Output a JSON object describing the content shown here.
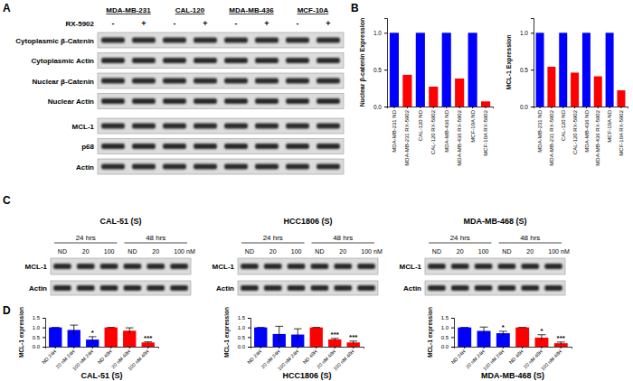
{
  "panel_labels": [
    "A",
    "B",
    "C",
    "D"
  ],
  "blot_a": {
    "treatment_label": "RX-5902",
    "groups": [
      {
        "name": "MDA-MB-231",
        "lanes": [
          "-",
          "+"
        ]
      },
      {
        "name": "CAL-120",
        "lanes": [
          "-",
          "+"
        ]
      },
      {
        "name": "MDA-MB-436",
        "lanes": [
          "-",
          "+"
        ]
      },
      {
        "name": "MCF-10A",
        "lanes": [
          "-",
          "+"
        ]
      }
    ],
    "row_groups": [
      [
        "Cytoplasmic β-Catenin",
        "Cytoplasmic Actin",
        "Nuclear β-Catenin",
        "Nuclear Actin"
      ],
      [
        "MCL-1",
        "p68",
        "Actin"
      ]
    ]
  },
  "blots_c": [
    {
      "title": "CAL-51 (S)",
      "times": [
        "24 hrs",
        "48 hrs"
      ],
      "lanes": [
        "ND",
        "20",
        "100",
        "ND",
        "20",
        "100"
      ],
      "unit": "nM",
      "rows": [
        "MCL-1",
        "Actin"
      ]
    },
    {
      "title": "HCC1806 (S)",
      "times": [
        "24 hrs",
        "48 hrs"
      ],
      "lanes": [
        "ND",
        "20",
        "100",
        "ND",
        "20",
        "100"
      ],
      "unit": "nM",
      "rows": [
        "MCL-1",
        "Actin"
      ]
    },
    {
      "title": "MDA-MB-468 (S)",
      "times": [
        "24 hrs",
        "48 hrs"
      ],
      "lanes": [
        "ND",
        "20",
        "100",
        "ND",
        "20",
        "100"
      ],
      "unit": "nM",
      "rows": [
        "MCL-1",
        "Actin"
      ]
    }
  ],
  "chart_data": [
    {
      "type": "bar",
      "ylabel": "Nuclear β-catenin Expression",
      "categories": [
        "MDA-MB-231 ND",
        "MDA-MB-231 RX-5902",
        "CAL-120 ND",
        "CAL-120 RX-5902",
        "MDA-MB-436 ND",
        "MDA-MB-436 RX-5902",
        "MCF-10A ND",
        "MCF-10A RX-5902"
      ],
      "values": [
        1.0,
        0.43,
        1.0,
        0.27,
        1.0,
        0.38,
        1.0,
        0.07
      ],
      "colors": [
        "#0000ff",
        "#ff0000",
        "#0000ff",
        "#ff0000",
        "#0000ff",
        "#ff0000",
        "#0000ff",
        "#ff0000"
      ],
      "ylim": [
        0,
        1.2
      ],
      "yticks": [
        {
          "value": 0,
          "label": "0.0"
        },
        {
          "value": 0.5,
          "label": "0.5"
        },
        {
          "value": 1,
          "label": "1.0"
        }
      ]
    },
    {
      "type": "bar",
      "ylabel": "MCL-1 Expression",
      "categories": [
        "MDA-MB-231 ND",
        "MDA-MB-231 RX-5902",
        "CAL-120 ND",
        "CAL-120 RX-5902",
        "MDA-MB-436 ND",
        "MDA-MB-436 RX-5902",
        "MCF-10A ND",
        "MCF-10A RX-5902"
      ],
      "values": [
        1.0,
        0.54,
        1.0,
        0.46,
        1.0,
        0.41,
        1.0,
        0.22
      ],
      "colors": [
        "#0000ff",
        "#ff0000",
        "#0000ff",
        "#ff0000",
        "#0000ff",
        "#ff0000",
        "#0000ff",
        "#ff0000"
      ],
      "ylim": [
        0,
        1.2
      ],
      "yticks": [
        {
          "value": 0,
          "label": "0.0"
        },
        {
          "value": 0.5,
          "label": "0.5"
        },
        {
          "value": 1,
          "label": "1.0"
        }
      ]
    },
    {
      "type": "bar",
      "title": "CAL-51 (S)",
      "ylabel": "MCL-1 expression",
      "categories": [
        "ND 24H",
        "20 nM 24H",
        "100 nM 24H",
        "ND 48H",
        "20 nM 48H",
        "100 nM 48H"
      ],
      "values": [
        1.0,
        0.87,
        0.37,
        1.0,
        0.83,
        0.22
      ],
      "errors": [
        0,
        0.25,
        0.15,
        0,
        0.15,
        0.03
      ],
      "significance": [
        null,
        null,
        "*",
        null,
        null,
        "***"
      ],
      "colors": [
        "#0000ff",
        "#0000ff",
        "#0000ff",
        "#ff0000",
        "#ff0000",
        "#ff0000"
      ],
      "ylim": [
        0,
        1.5
      ],
      "yticks": [
        {
          "value": 0,
          "label": "0.0"
        },
        {
          "value": 0.5,
          "label": "0.5"
        },
        {
          "value": 1,
          "label": "1.0"
        },
        {
          "value": 1.5,
          "label": "1.5"
        }
      ]
    },
    {
      "type": "bar",
      "title": "HCC1806 (S)",
      "ylabel": "MCL-1 expression",
      "categories": [
        "ND 24H",
        "20 nM 24H",
        "100 nM 24H",
        "ND 48H",
        "20 nM 48H",
        "100 nM 48H"
      ],
      "values": [
        1.0,
        0.66,
        0.63,
        1.0,
        0.38,
        0.22
      ],
      "errors": [
        0,
        0.4,
        0.3,
        0,
        0.05,
        0.07
      ],
      "significance": [
        null,
        null,
        null,
        null,
        "***",
        "***"
      ],
      "colors": [
        "#0000ff",
        "#0000ff",
        "#0000ff",
        "#ff0000",
        "#ff0000",
        "#ff0000"
      ],
      "ylim": [
        0,
        1.5
      ],
      "yticks": [
        {
          "value": 0,
          "label": "0.0"
        },
        {
          "value": 0.5,
          "label": "0.5"
        },
        {
          "value": 1,
          "label": "1.0"
        },
        {
          "value": 1.5,
          "label": "1.5"
        }
      ]
    },
    {
      "type": "bar",
      "title": "MDA-MB-468 (S)",
      "ylabel": "MCL-1 expression",
      "categories": [
        "ND 24H",
        "20 nM 24H",
        "100 nM 24H",
        "ND 48H",
        "20 nM 48H",
        "100 nM 48H"
      ],
      "values": [
        1.0,
        0.82,
        0.7,
        1.0,
        0.47,
        0.18
      ],
      "errors": [
        0,
        0.2,
        0.1,
        0,
        0.15,
        0.06
      ],
      "significance": [
        null,
        null,
        "*",
        null,
        "*",
        "***"
      ],
      "colors": [
        "#0000ff",
        "#0000ff",
        "#0000ff",
        "#ff0000",
        "#ff0000",
        "#ff0000"
      ],
      "ylim": [
        0,
        1.5
      ],
      "yticks": [
        {
          "value": 0,
          "label": "0.0"
        },
        {
          "value": 0.5,
          "label": "0.5"
        },
        {
          "value": 1,
          "label": "1.0"
        },
        {
          "value": 1.5,
          "label": "1.5"
        }
      ]
    }
  ]
}
